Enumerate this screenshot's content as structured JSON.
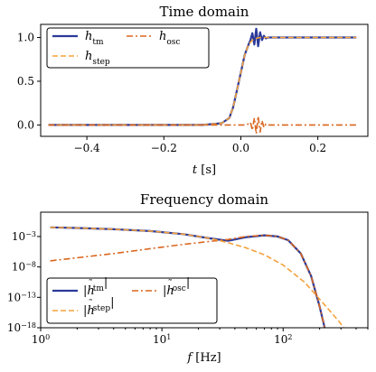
{
  "chart_data": [
    {
      "type": "line",
      "title": "Time domain",
      "xlabel": {
        "var": "t",
        "unit": "[s]"
      },
      "ylabel": "",
      "xlim": [
        -0.52,
        0.33
      ],
      "ylim": [
        -0.13,
        1.15
      ],
      "xticks": [
        -0.4,
        -0.2,
        0.0,
        0.2
      ],
      "xtick_labels": [
        "−0.4",
        "−0.2",
        "0.0",
        "0.2"
      ],
      "yticks": [
        0.0,
        0.5,
        1.0
      ],
      "ytick_labels": [
        "0.0",
        "0.5",
        "1.0"
      ],
      "legend": "top-left",
      "series": [
        {
          "name": {
            "base": "h",
            "sub": "tm"
          },
          "color": "#2b3a9a",
          "style": "solid",
          "x": [
            -0.5,
            -0.1,
            -0.05,
            -0.03,
            -0.02,
            -0.01,
            0.0,
            0.01,
            0.02,
            0.025,
            0.03,
            0.035,
            0.04,
            0.045,
            0.05,
            0.055,
            0.06,
            0.065,
            0.07,
            0.3
          ],
          "y": [
            0.0,
            0.0,
            0.02,
            0.08,
            0.2,
            0.4,
            0.6,
            0.8,
            0.92,
            0.97,
            1.05,
            0.92,
            1.1,
            0.9,
            1.06,
            0.97,
            1.02,
            0.99,
            1.0,
            1.0
          ]
        },
        {
          "name": {
            "base": "h",
            "sub": "step"
          },
          "color": "#f5a23c",
          "style": "dashed",
          "x": [
            -0.5,
            -0.1,
            -0.05,
            -0.03,
            -0.02,
            -0.01,
            0.0,
            0.01,
            0.02,
            0.03,
            0.04,
            0.05,
            0.3
          ],
          "y": [
            0.0,
            0.0,
            0.02,
            0.08,
            0.2,
            0.4,
            0.6,
            0.8,
            0.92,
            0.97,
            0.99,
            1.0,
            1.0
          ]
        },
        {
          "name": {
            "base": "h",
            "sub": "osc"
          },
          "color": "#d9661f",
          "style": "dashdot",
          "x": [
            -0.5,
            0.015,
            0.025,
            0.03,
            0.035,
            0.04,
            0.045,
            0.05,
            0.055,
            0.06,
            0.065,
            0.07,
            0.3
          ],
          "y": [
            0.0,
            0.0,
            0.03,
            -0.06,
            0.08,
            -0.1,
            0.1,
            -0.08,
            0.05,
            -0.03,
            0.01,
            0.0,
            0.0
          ]
        }
      ]
    },
    {
      "type": "line",
      "title": "Frequency domain",
      "xlabel": {
        "var": "f",
        "unit": "[Hz]"
      },
      "ylabel": "",
      "xscale": "log",
      "yscale": "log",
      "xlim": [
        1,
        500
      ],
      "ylim_exp": [
        -18,
        1
      ],
      "xticks": [
        1,
        10,
        100
      ],
      "xtick_labels": [
        {
          "base": "10",
          "exp": "0"
        },
        {
          "base": "10",
          "exp": "1"
        },
        {
          "base": "10",
          "exp": "2"
        }
      ],
      "yticks_exp": [
        -18,
        -13,
        -8,
        -3
      ],
      "ytick_labels": [
        {
          "base": "10",
          "exp": "−18"
        },
        {
          "base": "10",
          "exp": "−13"
        },
        {
          "base": "10",
          "exp": "−8"
        },
        {
          "base": "10",
          "exp": "−3"
        }
      ],
      "legend": "bottom-left",
      "series": [
        {
          "name": {
            "base": "h",
            "sub": "tm"
          },
          "color": "#2b3a9a",
          "style": "solid",
          "x": [
            1.2,
            2,
            4,
            8,
            15,
            25,
            35,
            50,
            70,
            90,
            110,
            140,
            170,
            200,
            220
          ],
          "y_exp": [
            -1.5,
            -1.6,
            -1.8,
            -2.1,
            -2.6,
            -3.3,
            -3.7,
            -3.1,
            -2.8,
            -3.0,
            -3.6,
            -5.8,
            -9.5,
            -14.5,
            -18.0
          ]
        },
        {
          "name": {
            "base": "h",
            "sub": "step"
          },
          "color": "#f5a23c",
          "style": "dashed",
          "x": [
            1.2,
            2,
            4,
            8,
            15,
            25,
            35,
            50,
            70,
            100,
            150,
            200,
            250,
            290,
            330
          ],
          "y_exp": [
            -1.5,
            -1.6,
            -1.8,
            -2.1,
            -2.6,
            -3.3,
            -4.0,
            -4.9,
            -6.0,
            -7.7,
            -10.5,
            -13.3,
            -15.5,
            -17.0,
            -18.5
          ]
        },
        {
          "name": {
            "base": "h",
            "sub": "osc"
          },
          "color": "#d9661f",
          "style": "dashdot",
          "x": [
            1.2,
            2,
            4,
            8,
            15,
            25,
            35,
            50,
            70,
            90,
            110,
            140,
            170,
            200,
            220
          ],
          "y_exp": [
            -7.0,
            -6.5,
            -5.8,
            -5.0,
            -4.3,
            -3.8,
            -3.5,
            -3.0,
            -2.8,
            -3.0,
            -3.6,
            -5.8,
            -9.5,
            -14.5,
            -18.0
          ]
        }
      ]
    }
  ]
}
